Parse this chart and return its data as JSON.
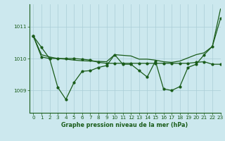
{
  "xlabel": "Graphe pression niveau de la mer (hPa)",
  "xlim": [
    -0.5,
    23
  ],
  "ylim": [
    1008.3,
    1011.7
  ],
  "yticks": [
    1009,
    1010,
    1011
  ],
  "xticks": [
    0,
    1,
    2,
    3,
    4,
    5,
    6,
    7,
    8,
    9,
    10,
    11,
    12,
    13,
    14,
    15,
    16,
    17,
    18,
    19,
    20,
    21,
    22,
    23
  ],
  "background_color": "#cce8ee",
  "grid_color": "#aacdd6",
  "line_color": "#1a5c1a",
  "text_color": "#1a5c1a",
  "series1": [
    1010.7,
    1010.35,
    1010.0,
    1009.1,
    1008.72,
    1009.25,
    1009.6,
    1009.62,
    1009.72,
    1009.78,
    1010.12,
    1009.82,
    1009.82,
    1009.62,
    1009.42,
    1009.92,
    1009.05,
    1009.0,
    1009.12,
    1009.72,
    1009.82,
    1010.12,
    1010.38,
    1011.25
  ],
  "series2": [
    1010.7,
    1010.05,
    1010.0,
    1010.0,
    1010.0,
    1010.0,
    1009.98,
    1009.95,
    1009.88,
    1009.85,
    1009.85,
    1009.85,
    1009.85,
    1009.85,
    1009.85,
    1009.85,
    1009.85,
    1009.85,
    1009.85,
    1009.85,
    1009.88,
    1009.9,
    1009.82,
    1009.82
  ],
  "series3": [
    1010.7,
    1010.12,
    1010.05,
    1010.0,
    1009.98,
    1009.95,
    1009.93,
    1009.92,
    1009.91,
    1009.9,
    1010.12,
    1010.1,
    1010.08,
    1009.98,
    1009.98,
    1009.95,
    1009.9,
    1009.88,
    1009.92,
    1010.02,
    1010.12,
    1010.18,
    1010.38,
    1011.55
  ]
}
